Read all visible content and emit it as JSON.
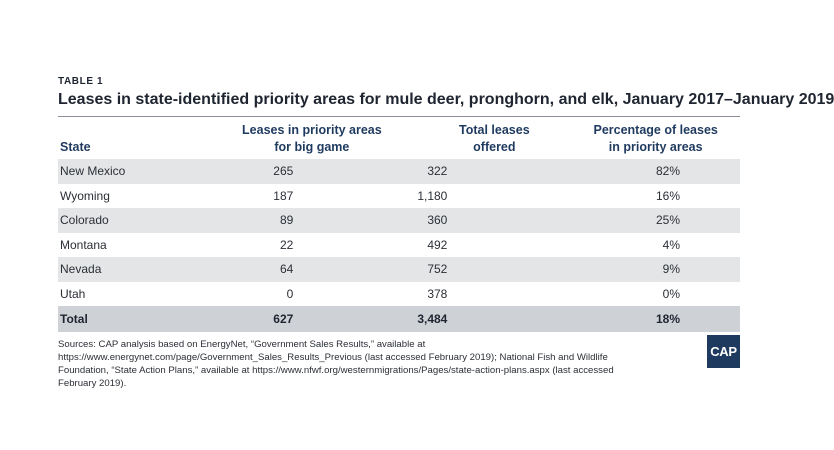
{
  "label": "TABLE 1",
  "title": "Leases in state-identified priority areas for mule deer, pronghorn, and elk, January 2017–January 2019",
  "chart_data": {
    "type": "table",
    "columns": [
      {
        "line1": "",
        "line2": "State"
      },
      {
        "line1": "Leases in priority areas",
        "line2": "for big game"
      },
      {
        "line1": "Total leases",
        "line2": "offered"
      },
      {
        "line1": "Percentage of leases",
        "line2": "in priority areas"
      }
    ],
    "rows": [
      {
        "state": "New Mexico",
        "priority": "265",
        "total": "322",
        "pct": "82%"
      },
      {
        "state": "Wyoming",
        "priority": "187",
        "total": "1,180",
        "pct": "16%"
      },
      {
        "state": "Colorado",
        "priority": "89",
        "total": "360",
        "pct": "25%"
      },
      {
        "state": "Montana",
        "priority": "22",
        "total": "492",
        "pct": "4%"
      },
      {
        "state": "Nevada",
        "priority": "64",
        "total": "752",
        "pct": "9%"
      },
      {
        "state": "Utah",
        "priority": "0",
        "total": "378",
        "pct": "0%"
      }
    ],
    "total": {
      "state": "Total",
      "priority": "627",
      "total": "3,484",
      "pct": "18%"
    }
  },
  "sources": "Sources: CAP analysis based on EnergyNet, “Government Sales Results,” available at https://www.energynet.com/page/Government_Sales_Results_Previous (last accessed February 2019); National Fish and Wildlife Foundation, “State Action Plans,” available at https://www.nfwf.org/westernmigrations/Pages/state-action-plans.aspx (last accessed February 2019).",
  "logo": "CAP",
  "colors": {
    "navy": "#1f3a5f",
    "row_shade": "#e4e5e7",
    "total_shade": "#ced1d6"
  }
}
